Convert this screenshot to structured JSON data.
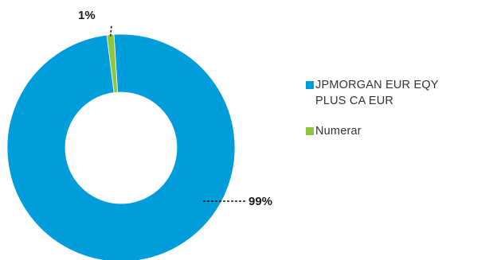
{
  "chart_data": {
    "type": "pie",
    "donut": true,
    "title": "",
    "legend_position": "right",
    "slices": [
      {
        "label": "JPMORGAN EUR EQY PLUS CA EUR",
        "legend_lines": [
          "JPMORGAN EUR EQY",
          "PLUS CA EUR"
        ],
        "value": 99,
        "value_label": "99%",
        "color": "#009ddc"
      },
      {
        "label": "Numerar",
        "legend_lines": [
          "Numerar"
        ],
        "value": 1,
        "value_label": "1%",
        "color": "#8dc63f"
      }
    ]
  }
}
